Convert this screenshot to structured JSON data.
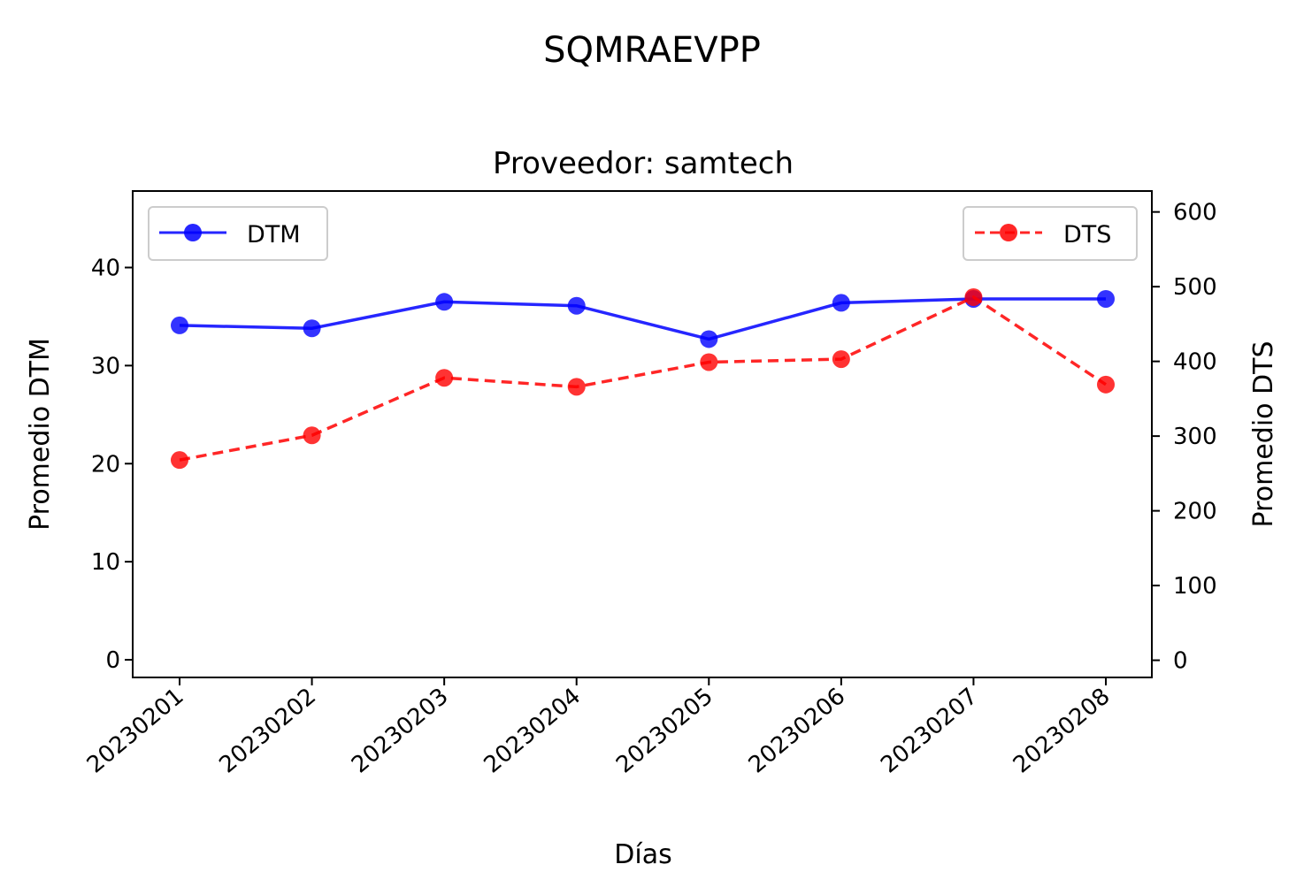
{
  "chart_data": {
    "type": "line",
    "suptitle": "SQMRAEVPP",
    "title": "Proveedor: samtech",
    "xlabel": "Días",
    "ylabel_left": "Promedio DTM",
    "ylabel_right": "Promedio DTS",
    "categories": [
      "20230201",
      "20230202",
      "20230203",
      "20230204",
      "20230205",
      "20230206",
      "20230207",
      "20230208"
    ],
    "y_left": {
      "range": [
        -1.8,
        47.8
      ],
      "ticks": [
        0,
        10,
        20,
        30,
        40
      ]
    },
    "y_right": {
      "range": [
        -23,
        628
      ],
      "ticks": [
        0,
        100,
        200,
        300,
        400,
        500,
        600
      ]
    },
    "series": [
      {
        "name": "DTM",
        "axis": "left",
        "color": "#0000ff",
        "style": "solid",
        "values": [
          34.1,
          33.8,
          36.5,
          36.1,
          32.7,
          36.4,
          36.8,
          36.8
        ]
      },
      {
        "name": "DTS",
        "axis": "right",
        "color": "#ff0000",
        "style": "dashed",
        "values": [
          268,
          301,
          378,
          366,
          399,
          403,
          486,
          369
        ]
      }
    ],
    "legend": {
      "DTM": "upper-left",
      "DTS": "upper-right"
    },
    "grid": false
  }
}
